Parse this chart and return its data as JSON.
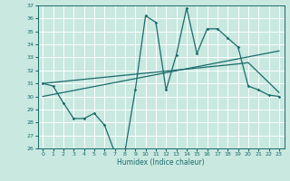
{
  "xlabel": "Humidex (Indice chaleur)",
  "xlim": [
    -0.5,
    23.5
  ],
  "ylim": [
    26,
    37
  ],
  "yticks": [
    26,
    27,
    28,
    29,
    30,
    31,
    32,
    33,
    34,
    35,
    36,
    37
  ],
  "xticks": [
    0,
    1,
    2,
    3,
    4,
    5,
    6,
    7,
    8,
    9,
    10,
    11,
    12,
    13,
    14,
    15,
    16,
    17,
    18,
    19,
    20,
    21,
    22,
    23
  ],
  "bg_color": "#c8e8e0",
  "line_color": "#1a6b6b",
  "grid_color": "#ffffff",
  "line1_x": [
    0,
    1,
    2,
    3,
    4,
    5,
    6,
    7,
    8,
    9,
    10,
    11,
    12,
    13,
    14,
    15,
    16,
    17,
    18,
    19,
    20,
    21,
    22,
    23
  ],
  "line1_y": [
    31.0,
    30.8,
    29.5,
    28.3,
    28.3,
    28.7,
    27.8,
    25.7,
    25.8,
    30.5,
    36.2,
    35.7,
    30.5,
    33.2,
    36.8,
    33.3,
    35.2,
    35.2,
    34.5,
    33.8,
    30.8,
    30.5,
    30.1,
    30.0
  ],
  "line2_x": [
    0,
    19,
    20,
    23
  ],
  "line2_y": [
    31.0,
    32.5,
    32.6,
    30.3
  ],
  "line3_x": [
    0,
    23
  ],
  "line3_y": [
    30.0,
    33.5
  ]
}
